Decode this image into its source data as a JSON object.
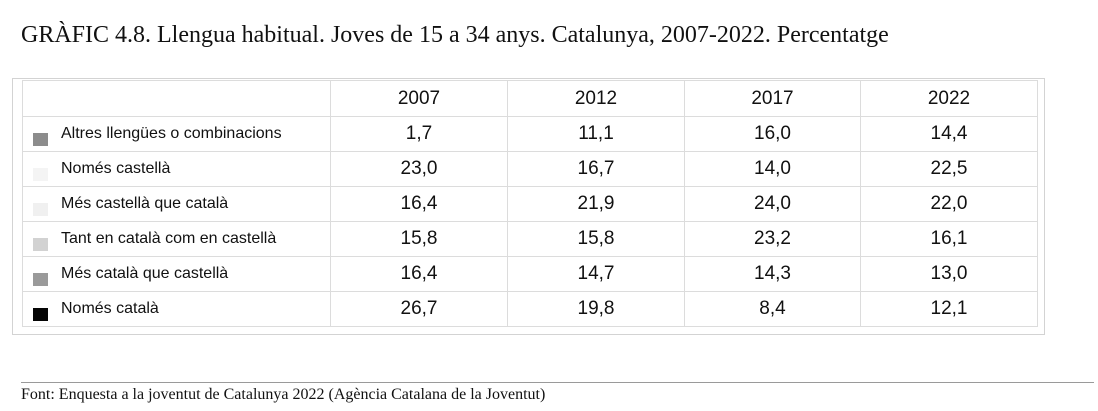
{
  "title": "GRÀFIC 4.8. Llengua habitual. Joves de 15 a 34 anys. Catalunya, 2007-2022. Percentatge",
  "source": "Font: Enquesta a la joventut de Catalunya 2022 (Agència Catalana de la Joventut)",
  "chart_data": {
    "type": "table",
    "title": "GRÀFIC 4.8. Llengua habitual. Joves de 15 a 34 anys. Catalunya, 2007-2022. Percentatge",
    "columns": [
      "2007",
      "2012",
      "2017",
      "2022"
    ],
    "rows": [
      {
        "label": "Altres llengües o combinacions",
        "color": "#8c8c8c",
        "values": [
          "1,7",
          "11,1",
          "16,0",
          "14,4"
        ]
      },
      {
        "label": "Només castellà",
        "color": "#f4f4f4",
        "values": [
          "23,0",
          "16,7",
          "14,0",
          "22,5"
        ]
      },
      {
        "label": "Més castellà que català",
        "color": "#f0f0f0",
        "values": [
          "16,4",
          "21,9",
          "24,0",
          "22,0"
        ]
      },
      {
        "label": "Tant en català com en castellà",
        "color": "#d2d2d2",
        "values": [
          "15,8",
          "15,8",
          "23,2",
          "16,1"
        ]
      },
      {
        "label": "Més català que castellà",
        "color": "#9a9a9a",
        "values": [
          "16,4",
          "14,7",
          "14,3",
          "13,0"
        ]
      },
      {
        "label": "Només català",
        "color": "#050505",
        "values": [
          "26,7",
          "19,8",
          "8,4",
          "12,1"
        ]
      }
    ]
  }
}
